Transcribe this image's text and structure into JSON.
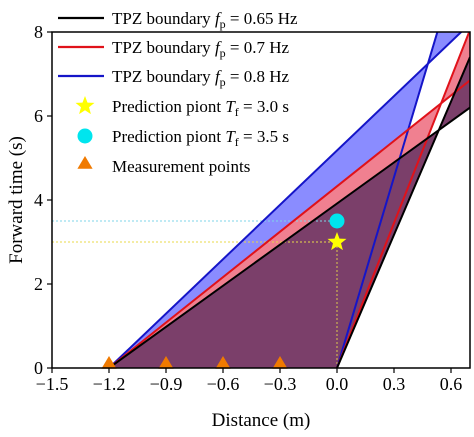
{
  "chart_data": {
    "type": "line",
    "xlabel": "Distance (m)",
    "ylabel": "Forward time (s)",
    "xlim": [
      -1.5,
      0.7
    ],
    "ylim": [
      0,
      8
    ],
    "xticks": [
      -1.5,
      -1.2,
      -0.9,
      -0.6,
      -0.3,
      0.0,
      0.3,
      0.6
    ],
    "xtick_labels": [
      "−1.5",
      "−1.2",
      "−0.9",
      "−0.6",
      "−0.3",
      "0.0",
      "0.3",
      "0.6"
    ],
    "yticks": [
      0,
      2,
      4,
      6,
      8
    ],
    "ytick_labels": [
      "0",
      "2",
      "4",
      "6",
      "8"
    ],
    "legend_position": "top-left",
    "series": [
      {
        "name": "TPZ boundary f_p = 0.65 Hz",
        "legend_parts": [
          "TPZ boundary ",
          "f",
          "p",
          " = 0.65 Hz"
        ],
        "color": "#000000",
        "fill": "#7b3f6a",
        "rear": [
          [
            -1.2,
            0
          ],
          [
            0.7,
            6.2
          ]
        ],
        "front": [
          [
            0.0,
            0
          ],
          [
            0.7,
            7.4
          ]
        ]
      },
      {
        "name": "TPZ boundary f_p = 0.7 Hz",
        "legend_parts": [
          "TPZ boundary ",
          "f",
          "p",
          " = 0.7 Hz"
        ],
        "color": "#e0121a",
        "fill": "#f08090",
        "rear": [
          [
            -1.2,
            0
          ],
          [
            0.7,
            6.85
          ]
        ],
        "front": [
          [
            0.0,
            0
          ],
          [
            0.7,
            8.05
          ]
        ]
      },
      {
        "name": "TPZ boundary f_p = 0.8 Hz",
        "legend_parts": [
          "TPZ boundary ",
          "f",
          "p",
          " = 0.8 Hz"
        ],
        "color": "#1515c8",
        "fill": "#8a8cff",
        "rear": [
          [
            -1.2,
            0
          ],
          [
            0.7,
            8.2
          ]
        ],
        "front": [
          [
            0.0,
            0
          ],
          [
            0.7,
            10.6
          ]
        ]
      }
    ],
    "prediction_points": [
      {
        "name": "Prediction piont T_f = 3.0 s",
        "legend_parts": [
          "Prediction piont ",
          "T",
          "f",
          " = 3.0 s"
        ],
        "x": 0.0,
        "y": 3.0,
        "marker": "star",
        "color": "#ffff00"
      },
      {
        "name": "Prediction piont T_f = 3.5 s",
        "legend_parts": [
          "Prediction piont ",
          "T",
          "f",
          " = 3.5 s"
        ],
        "x": 0.0,
        "y": 3.5,
        "marker": "circle",
        "color": "#00e5ee"
      }
    ],
    "measurement_points": {
      "name": "Measurement points",
      "marker": "triangle",
      "color": "#f07a00",
      "x": [
        -1.2,
        -0.9,
        -0.6,
        -0.3
      ],
      "y": [
        0,
        0,
        0,
        0
      ]
    },
    "reference_lines": [
      {
        "y": 3.0,
        "color": "#e8d84a"
      },
      {
        "y": 3.5,
        "color": "#7fd6e8"
      }
    ]
  }
}
